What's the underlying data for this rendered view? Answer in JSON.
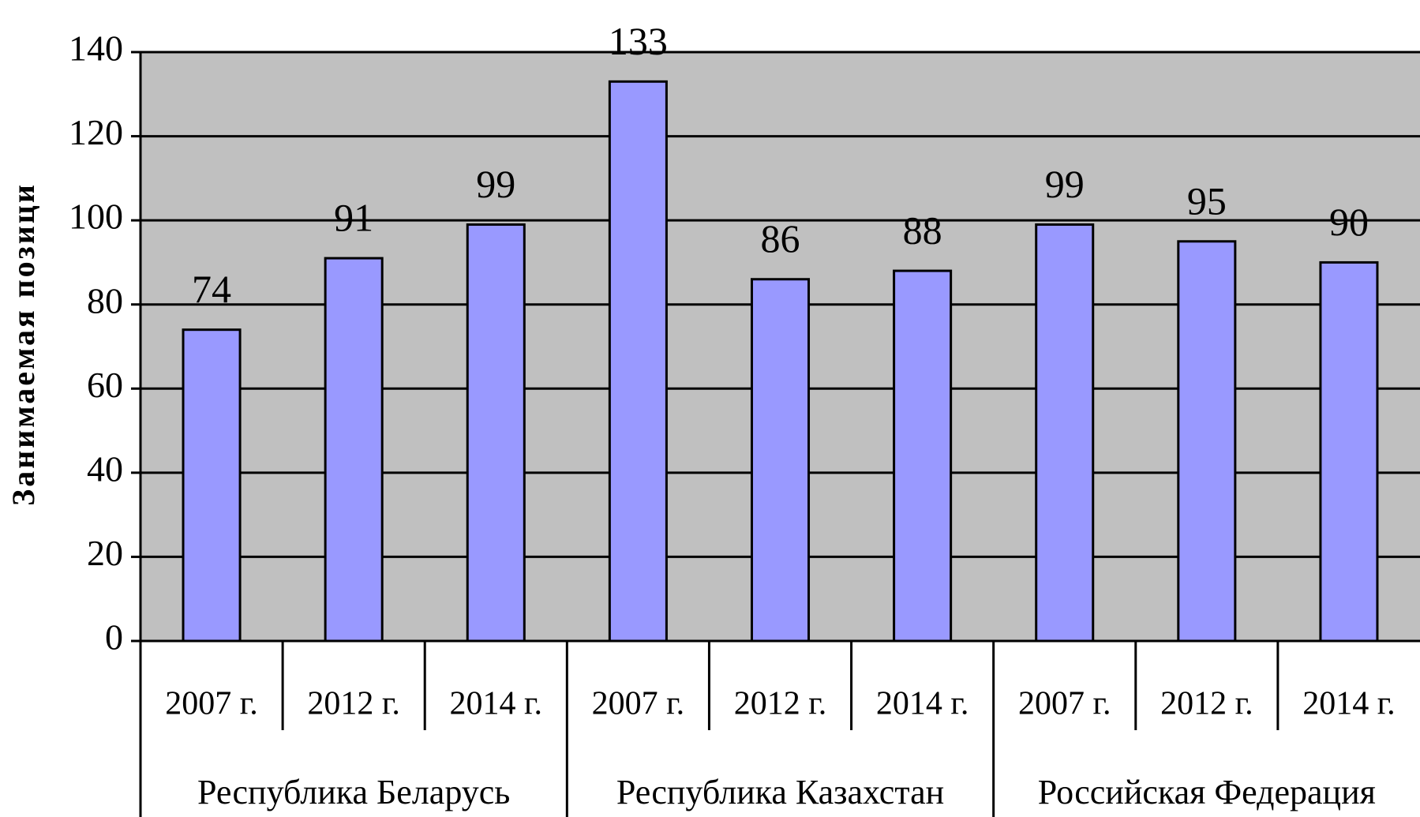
{
  "chart_data": {
    "type": "bar",
    "y_label": "Занимаемая позици",
    "groups": [
      {
        "label": "Республика Беларусь",
        "categories": [
          "2007 г.",
          "2012 г.",
          "2014 г."
        ],
        "values": [
          74,
          91,
          99
        ]
      },
      {
        "label": "Республика Казахстан",
        "categories": [
          "2007 г.",
          "2012 г.",
          "2014 г."
        ],
        "values": [
          133,
          86,
          88
        ]
      },
      {
        "label": "Российская Федерация",
        "categories": [
          "2007 г.",
          "2012 г.",
          "2014 г."
        ],
        "values": [
          99,
          95,
          90
        ]
      }
    ],
    "color": "#9999ff",
    "background": "#c0c0c0",
    "ylim": [
      0,
      140
    ],
    "yticks": [
      0,
      20,
      40,
      60,
      80,
      100,
      120,
      140
    ],
    "grid": true
  }
}
